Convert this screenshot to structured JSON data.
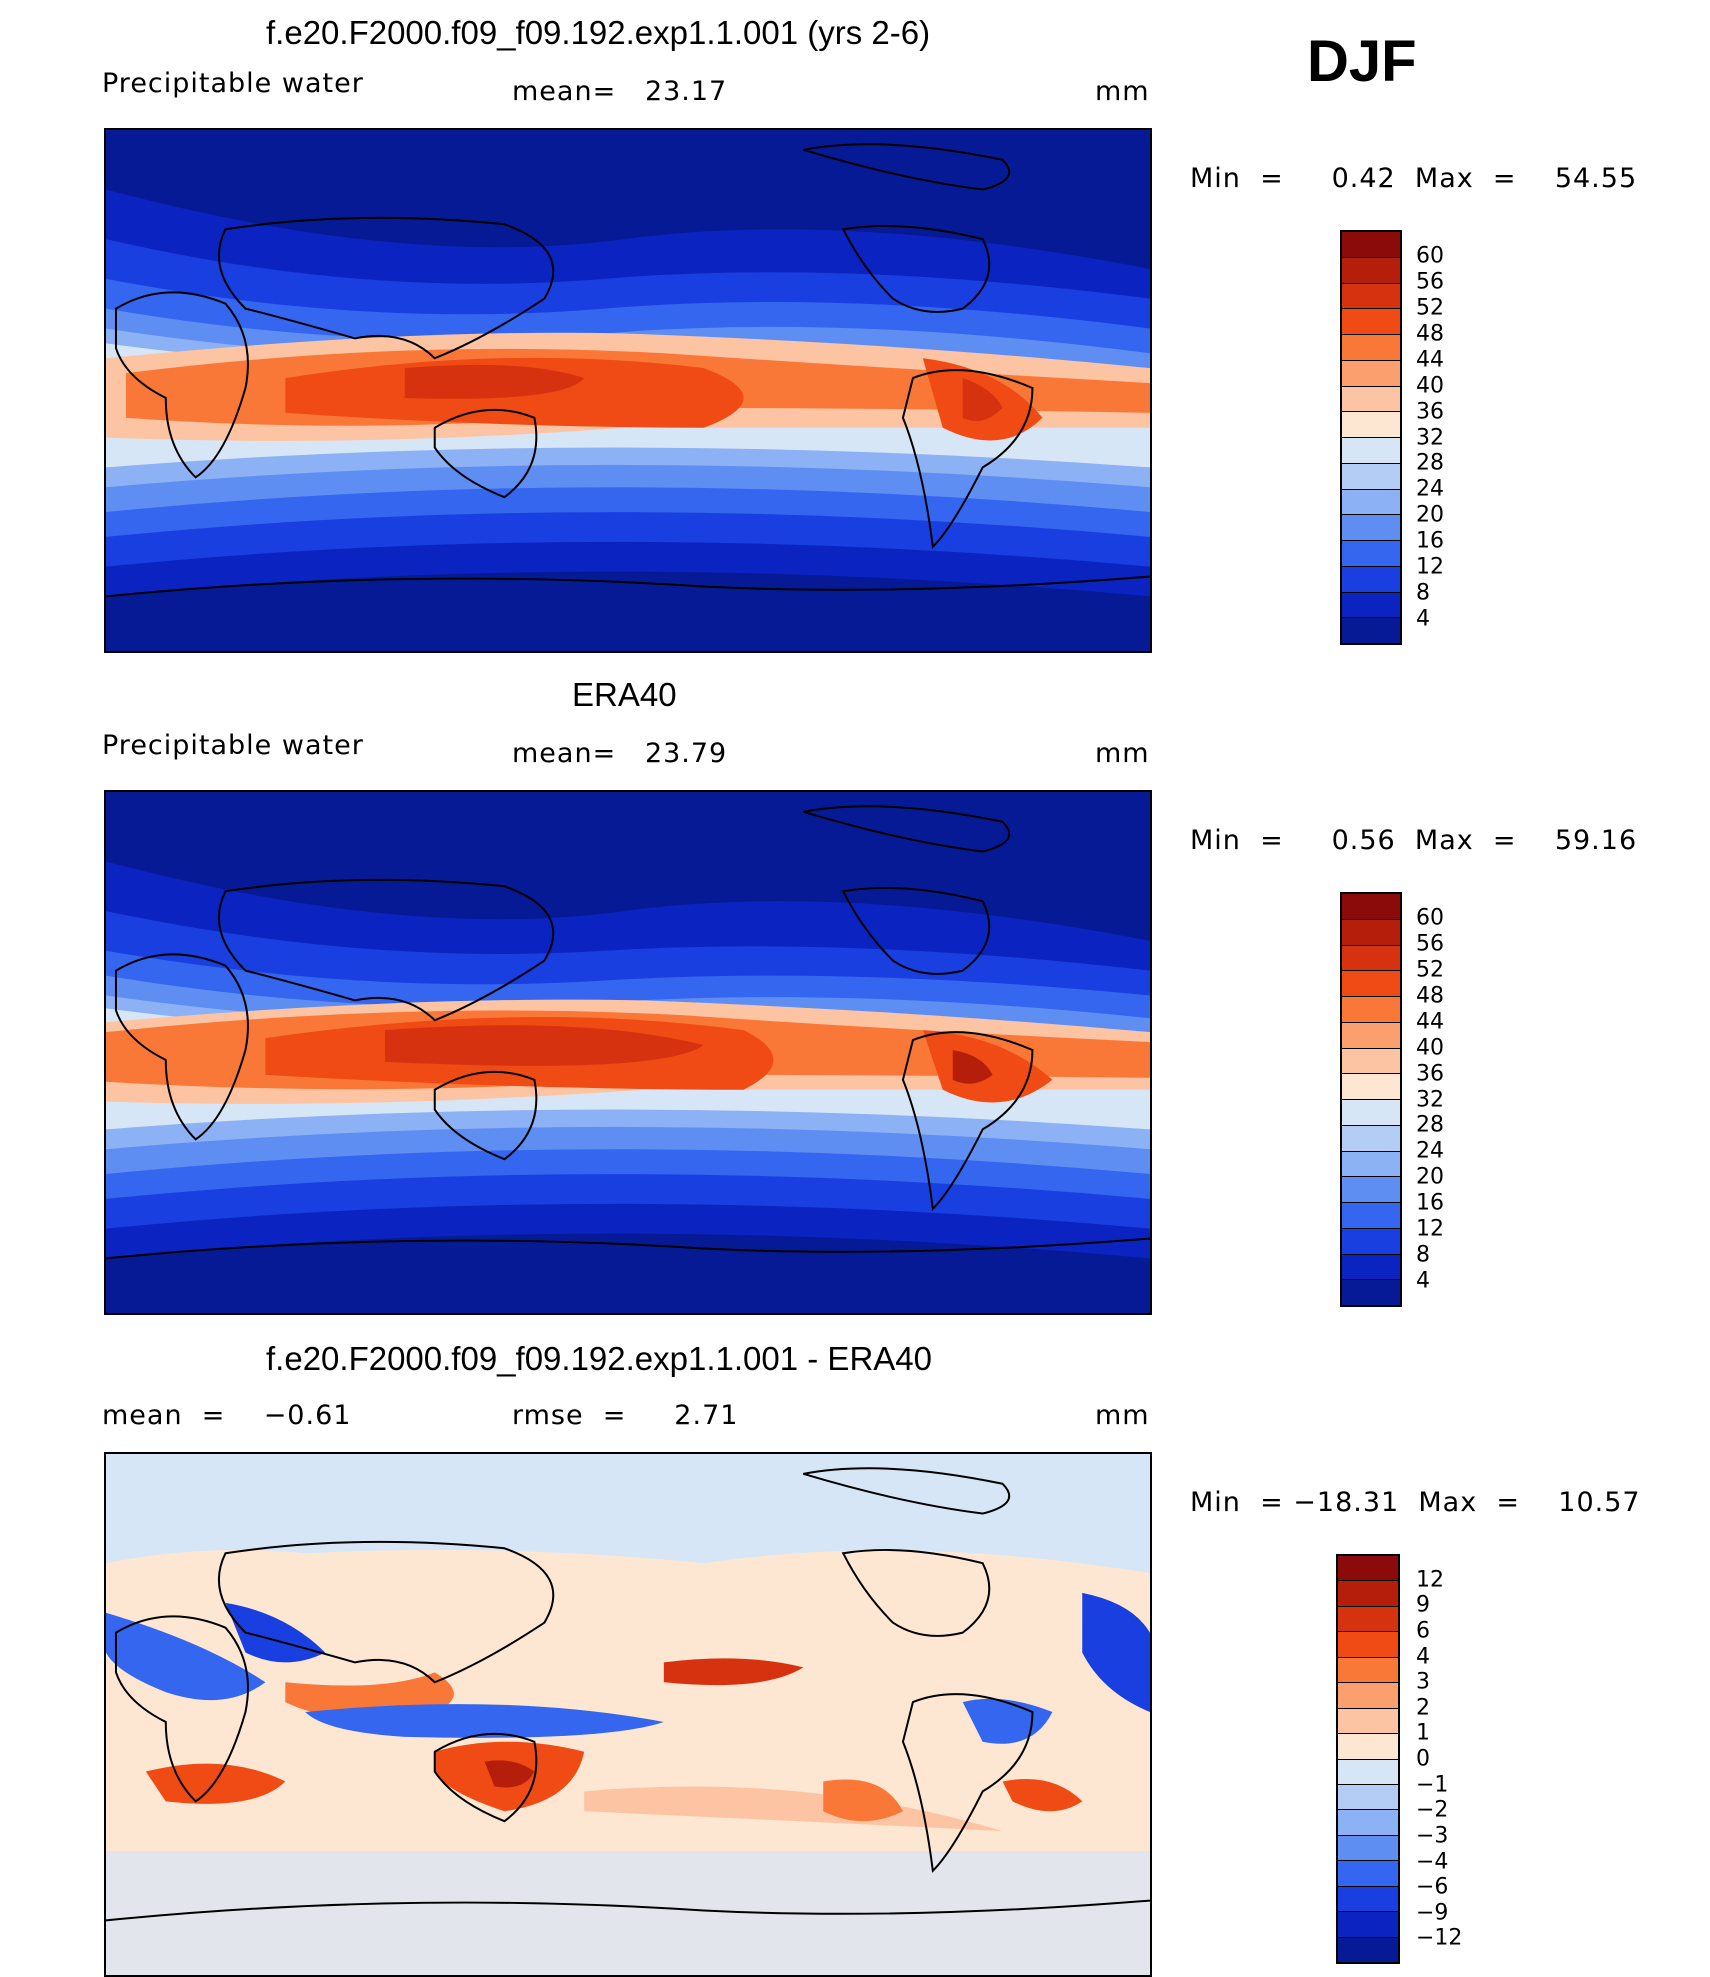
{
  "season": "DJF",
  "panels": [
    {
      "title": "f.e20.F2000.f09_f09.192.exp1.1.001 (yrs 2-6)",
      "field": "Precipitable water",
      "stat1": "mean=   23.17",
      "stat2": "",
      "units": "mm",
      "minmax": "Min  =     0.42  Max  =    54.55",
      "colorbar_labels": [
        "60",
        "56",
        "52",
        "48",
        "44",
        "40",
        "36",
        "32",
        "28",
        "24",
        "20",
        "16",
        "12",
        "8",
        "4"
      ],
      "colorbar_colors": [
        "#8b0a0a",
        "#b41e0a",
        "#d7320f",
        "#f04b14",
        "#fa7837",
        "#fc9f6e",
        "#fdc4a4",
        "#fde6d2",
        "#d6e6f7",
        "#b4cdf5",
        "#8cb1f4",
        "#5f8ef3",
        "#3466f0",
        "#1a3fe0",
        "#0b23c0",
        "#061a96"
      ]
    },
    {
      "title": "ERA40",
      "field": "Precipitable water",
      "stat1": "mean=   23.79",
      "stat2": "",
      "units": "mm",
      "minmax": "Min  =     0.56  Max  =    59.16",
      "colorbar_labels": [
        "60",
        "56",
        "52",
        "48",
        "44",
        "40",
        "36",
        "32",
        "28",
        "24",
        "20",
        "16",
        "12",
        "8",
        "4"
      ],
      "colorbar_colors": [
        "#8b0a0a",
        "#b41e0a",
        "#d7320f",
        "#f04b14",
        "#fa7837",
        "#fc9f6e",
        "#fdc4a4",
        "#fde6d2",
        "#d6e6f7",
        "#b4cdf5",
        "#8cb1f4",
        "#5f8ef3",
        "#3466f0",
        "#1a3fe0",
        "#0b23c0",
        "#061a96"
      ]
    },
    {
      "title": "f.e20.F2000.f09_f09.192.exp1.1.001 - ERA40",
      "field": "mean  =    −0.61",
      "stat1": "rmse  =     2.71",
      "stat2": "",
      "units": "mm",
      "minmax": "Min  = −18.31  Max  =    10.57",
      "colorbar_labels": [
        "12",
        "9",
        "6",
        "4",
        "3",
        "2",
        "1",
        "0",
        "−1",
        "−2",
        "−3",
        "−4",
        "−6",
        "−9",
        "−12"
      ],
      "colorbar_colors": [
        "#8b0a0a",
        "#b41e0a",
        "#d7320f",
        "#f04b14",
        "#fa7837",
        "#fc9f6e",
        "#fdc4a4",
        "#fde6d2",
        "#d6e6f7",
        "#b4cdf5",
        "#8cb1f4",
        "#5f8ef3",
        "#3466f0",
        "#1a3fe0",
        "#0b23c0",
        "#061a96"
      ]
    }
  ]
}
